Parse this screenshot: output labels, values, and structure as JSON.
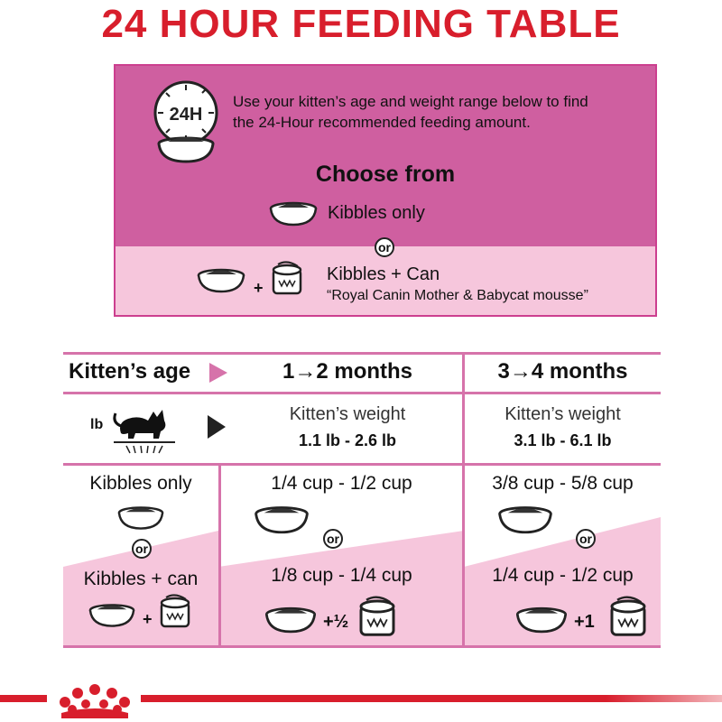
{
  "title": "24 HOUR FEEDING TABLE",
  "info": {
    "clock_label": "24H",
    "instructions": "Use your kitten’s age and weight range below to find the 24-Hour recommended feeding amount.",
    "choose_from": "Choose from",
    "option_kibbles": "Kibbles only",
    "or": "or",
    "option_kibbles_can": "Kibbles + Can",
    "plus": "+",
    "mousse_note": "“Royal Canin Mother & Babycat mousse”"
  },
  "table": {
    "age_header": "Kitten’s age",
    "weight_unit": "lb",
    "columns": [
      {
        "age": "1→2 months",
        "weight_label": "Kitten’s weight",
        "weight_range": "1.1 lb - 2.6 lb",
        "kibbles_only": "1/4 cup - 1/2 cup",
        "kibbles_can": "1/8 cup - 1/4 cup",
        "can_amount": "+½"
      },
      {
        "age": "3→4 months",
        "weight_label": "Kitten’s weight",
        "weight_range": "3.1 lb - 6.1 lb",
        "kibbles_only": "3/8 cup - 5/8 cup",
        "kibbles_can": "1/4 cup - 1/2 cup",
        "can_amount": "+1"
      }
    ],
    "row_kibbles_only": "Kibbles only",
    "row_or": "or",
    "row_kibbles_can": "Kibbles + can",
    "row_plus": "+"
  },
  "colors": {
    "brand_red": "#d81e2c",
    "pink_dark": "#cf5fa0",
    "pink_light": "#f6c6dc",
    "pink_line": "#d673aa"
  }
}
